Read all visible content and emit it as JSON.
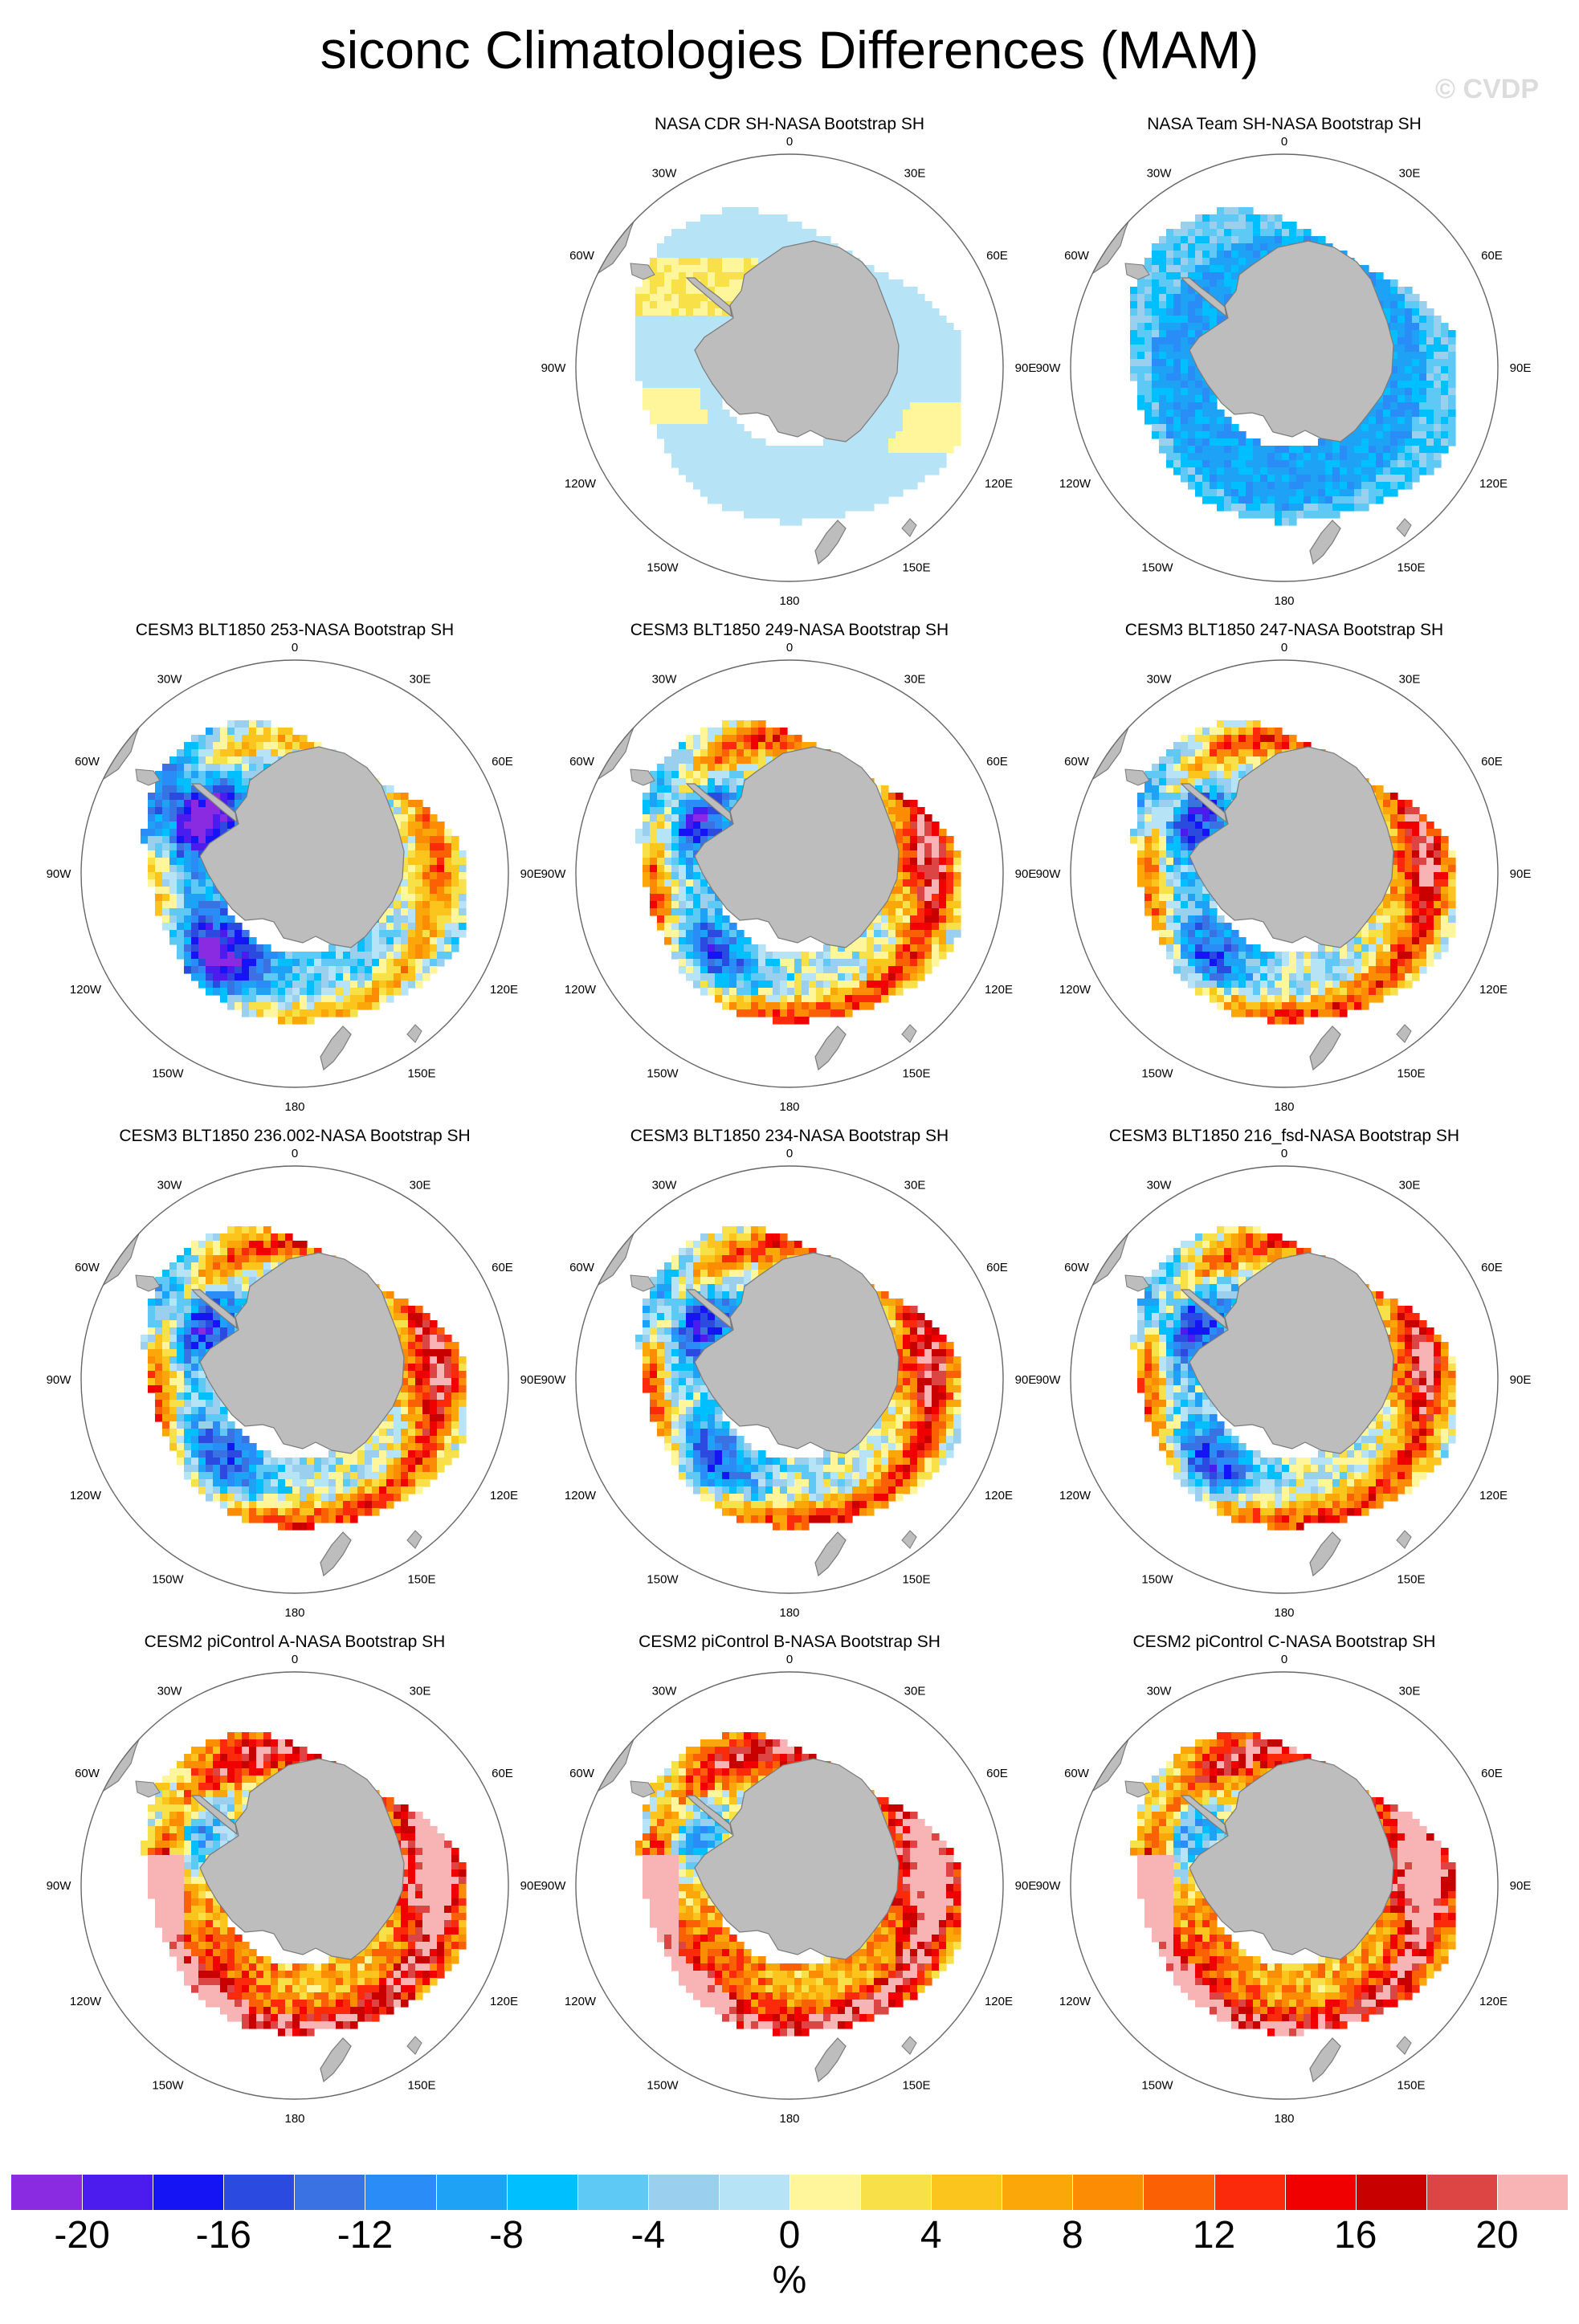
{
  "figure": {
    "title": "siconc Climatologies Differences (MAM)",
    "watermark": "© CVDP"
  },
  "map_labels": {
    "top": "0",
    "bottom": "180",
    "left": "90W",
    "right": "90E",
    "upper_left_outer": "60W",
    "upper_left_inner": "30W",
    "upper_right_inner": "30E",
    "upper_right_outer": "60E",
    "lower_left_outer": "120W",
    "lower_left_inner": "150W",
    "lower_right_outer": "120E",
    "lower_right_inner": "150E"
  },
  "panels": [
    {
      "title": "NASA CDR SH-NASA Bootstrap SH",
      "pattern": "cdr"
    },
    {
      "title": "NASA Team SH-NASA Bootstrap SH",
      "pattern": "team"
    },
    {
      "title": "CESM3 BLT1850 253-NASA Bootstrap SH",
      "pattern": "model_neg"
    },
    {
      "title": "CESM3 BLT1850 249-NASA Bootstrap SH",
      "pattern": "model_mix"
    },
    {
      "title": "CESM3 BLT1850 247-NASA Bootstrap SH",
      "pattern": "model_mix"
    },
    {
      "title": "CESM3 BLT1850 236.002-NASA Bootstrap SH",
      "pattern": "model_mix"
    },
    {
      "title": "CESM3 BLT1850 234-NASA Bootstrap SH",
      "pattern": "model_mix"
    },
    {
      "title": "CESM3 BLT1850 216_fsd-NASA Bootstrap SH",
      "pattern": "model_mix"
    },
    {
      "title": "CESM2 piControl A-NASA Bootstrap SH",
      "pattern": "model_pos"
    },
    {
      "title": "CESM2 piControl B-NASA Bootstrap SH",
      "pattern": "model_pos"
    },
    {
      "title": "CESM2 piControl C-NASA Bootstrap SH",
      "pattern": "model_pos"
    }
  ],
  "colorbar": {
    "colors": [
      "#8a2be2",
      "#4b1ced",
      "#1414f5",
      "#2a4ae0",
      "#3a72e4",
      "#2a8cf6",
      "#1ea2f6",
      "#00bfff",
      "#5ec9f5",
      "#9ad0ee",
      "#b7e3f7",
      "#fff59a",
      "#f8e048",
      "#fcc51e",
      "#fba70a",
      "#fc8c04",
      "#fb6004",
      "#fb2a0a",
      "#f00000",
      "#c80000",
      "#dd4444",
      "#f8b4b4"
    ],
    "tick_labels": [
      "-20",
      "-16",
      "-12",
      "-8",
      "-4",
      "0",
      "4",
      "8",
      "12",
      "16",
      "20"
    ],
    "tick_values": [
      -20,
      -16,
      -12,
      -8,
      -4,
      0,
      4,
      8,
      12,
      16,
      20
    ],
    "min": -22,
    "max": 22,
    "unit": "%"
  }
}
